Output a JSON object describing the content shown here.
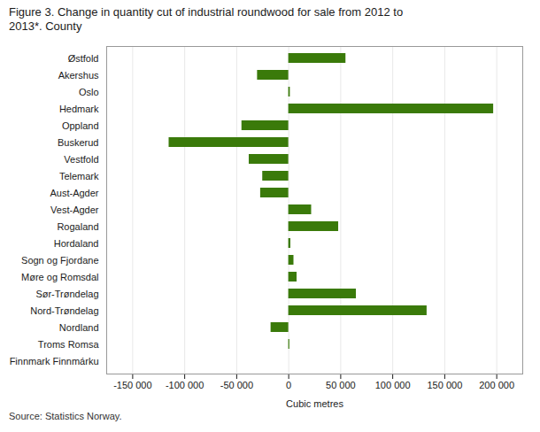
{
  "chart_data": {
    "type": "bar",
    "orientation": "horizontal",
    "title": "Figure 3. Change in quantity cut of industrial roundwood for sale from 2012 to\n2013*. County",
    "caption": "Source: Statistics Norway.",
    "xlabel": "Cubic metres",
    "categories": [
      "Østfold",
      "Akershus",
      "Oslo",
      "Hedmark",
      "Oppland",
      "Buskerud",
      "Vestfold",
      "Telemark",
      "Aust-Agder",
      "Vest-Agder",
      "Rogaland",
      "Hordaland",
      "Sogn og Fjordane",
      "Møre og Romsdal",
      "Sør-Trøndelag",
      "Nord-Trøndelag",
      "Nordland",
      "Troms Romsa",
      "Finnmark Finnmárku"
    ],
    "values": [
      55000,
      -30000,
      1500,
      197000,
      -45000,
      -115000,
      -38000,
      -25000,
      -27000,
      22000,
      48000,
      2000,
      5000,
      8000,
      65000,
      133000,
      -17000,
      1000,
      0
    ],
    "color": "#3a7a0a",
    "xlim": [
      -175000,
      225000
    ],
    "xticks": [
      {
        "value": -150000,
        "label": "-150 000"
      },
      {
        "value": -100000,
        "label": "-100 000"
      },
      {
        "value": -50000,
        "label": "-50 000"
      },
      0,
      {
        "value": 50000,
        "label": "50 000"
      },
      {
        "value": 100000,
        "label": "100 000"
      },
      {
        "value": 150000,
        "label": "150 000"
      },
      {
        "value": 200000,
        "label": "200 000"
      }
    ],
    "grid": true
  }
}
